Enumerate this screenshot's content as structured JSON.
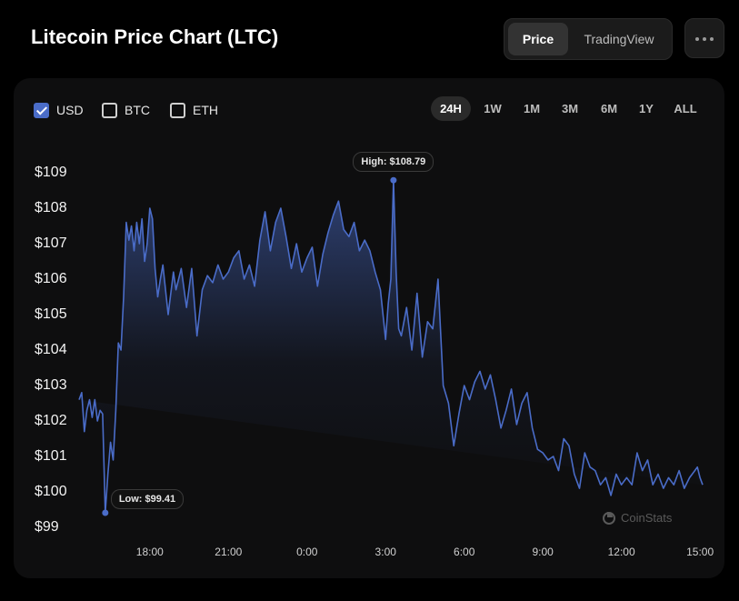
{
  "header": {
    "title": "Litecoin Price Chart (LTC)",
    "view_tabs": [
      "Price",
      "TradingView"
    ],
    "active_view": "Price",
    "more_icon": "more-horizontal-icon"
  },
  "currencies": [
    {
      "label": "USD",
      "checked": true
    },
    {
      "label": "BTC",
      "checked": false
    },
    {
      "label": "ETH",
      "checked": false
    }
  ],
  "ranges": [
    "24H",
    "1W",
    "1M",
    "3M",
    "6M",
    "1Y",
    "ALL"
  ],
  "active_range": "24H",
  "watermark": "CoinStats",
  "colors": {
    "line": "#4a6cc8",
    "accent_check": "#4a6cc8",
    "background": "#000000",
    "card": "#0e0e0f"
  },
  "chart_data": {
    "type": "area",
    "title": "",
    "xlabel": "",
    "ylabel": "",
    "y_tick_labels": [
      "$109",
      "$108",
      "$107",
      "$106",
      "$105",
      "$104",
      "$103",
      "$102",
      "$101",
      "$100",
      "$99"
    ],
    "y_ticks": [
      109,
      108,
      107,
      106,
      105,
      104,
      103,
      102,
      101,
      100,
      99
    ],
    "x_tick_labels": [
      "18:00",
      "21:00",
      "0:00",
      "3:00",
      "6:00",
      "9:00",
      "12:00",
      "15:00"
    ],
    "x_ticks": [
      18,
      21,
      24,
      27,
      30,
      33,
      36,
      39
    ],
    "xlim": [
      15.3,
      39.1
    ],
    "ylim": [
      99,
      109
    ],
    "grid": false,
    "annotations": [
      {
        "label": "High: $108.79",
        "x": 27.3,
        "y": 108.79
      },
      {
        "label": "Low: $99.41",
        "x": 16.3,
        "y": 99.41
      }
    ],
    "series": [
      {
        "x": [
          15.3,
          15.4,
          15.5,
          15.6,
          15.7,
          15.8,
          15.9,
          16.0,
          16.1,
          16.2,
          16.3,
          16.4,
          16.5,
          16.6,
          16.7,
          16.8,
          16.9,
          17.0,
          17.1,
          17.2,
          17.3,
          17.4,
          17.5,
          17.6,
          17.7,
          17.8,
          17.9,
          18.0,
          18.1,
          18.2,
          18.3,
          18.4,
          18.5,
          18.7,
          18.9,
          19.0,
          19.2,
          19.4,
          19.6,
          19.8,
          20.0,
          20.2,
          20.4,
          20.6,
          20.8,
          21.0,
          21.2,
          21.4,
          21.6,
          21.8,
          22.0,
          22.2,
          22.4,
          22.6,
          22.8,
          23.0,
          23.2,
          23.4,
          23.6,
          23.8,
          24.0,
          24.2,
          24.4,
          24.6,
          24.8,
          25.0,
          25.2,
          25.4,
          25.6,
          25.8,
          26.0,
          26.2,
          26.4,
          26.6,
          26.8,
          27.0,
          27.1,
          27.2,
          27.3,
          27.4,
          27.5,
          27.6,
          27.8,
          28.0,
          28.2,
          28.4,
          28.6,
          28.8,
          29.0,
          29.2,
          29.4,
          29.6,
          29.8,
          30.0,
          30.2,
          30.4,
          30.6,
          30.8,
          31.0,
          31.2,
          31.4,
          31.6,
          31.8,
          32.0,
          32.2,
          32.4,
          32.6,
          32.8,
          33.0,
          33.2,
          33.4,
          33.6,
          33.8,
          34.0,
          34.2,
          34.4,
          34.6,
          34.8,
          35.0,
          35.2,
          35.4,
          35.6,
          35.8,
          36.0,
          36.2,
          36.4,
          36.6,
          36.8,
          37.0,
          37.2,
          37.4,
          37.6,
          37.8,
          38.0,
          38.2,
          38.4,
          38.6,
          38.8,
          38.9,
          39.0,
          39.1
        ],
        "y": [
          102.6,
          102.8,
          101.7,
          102.3,
          102.6,
          102.1,
          102.6,
          102.0,
          102.3,
          102.2,
          99.41,
          100.5,
          101.4,
          100.9,
          102.3,
          104.2,
          104.0,
          105.5,
          107.6,
          107.1,
          107.5,
          106.8,
          107.6,
          107.0,
          107.7,
          106.5,
          107.0,
          108.0,
          107.7,
          106.3,
          105.5,
          106.0,
          106.4,
          105.0,
          106.2,
          105.7,
          106.3,
          105.2,
          106.3,
          104.4,
          105.7,
          106.1,
          105.9,
          106.4,
          106.0,
          106.2,
          106.6,
          106.8,
          106.0,
          106.4,
          105.8,
          107.1,
          107.9,
          106.8,
          107.6,
          108.0,
          107.2,
          106.3,
          107.0,
          106.2,
          106.6,
          106.9,
          105.8,
          106.7,
          107.3,
          107.8,
          108.2,
          107.4,
          107.2,
          107.6,
          106.8,
          107.1,
          106.8,
          106.2,
          105.7,
          104.3,
          105.3,
          106.0,
          108.79,
          106.2,
          104.6,
          104.4,
          105.2,
          104.0,
          105.6,
          103.8,
          104.8,
          104.6,
          106.0,
          103.0,
          102.5,
          101.3,
          102.2,
          103.0,
          102.6,
          103.1,
          103.4,
          102.9,
          103.3,
          102.6,
          101.8,
          102.3,
          102.9,
          101.9,
          102.5,
          102.8,
          101.8,
          101.2,
          101.1,
          100.9,
          101.0,
          100.6,
          101.5,
          101.3,
          100.5,
          100.1,
          101.1,
          100.7,
          100.6,
          100.2,
          100.4,
          99.9,
          100.5,
          100.2,
          100.4,
          100.2,
          101.1,
          100.6,
          100.9,
          100.2,
          100.5,
          100.1,
          100.4,
          100.2,
          100.6,
          100.1,
          100.4,
          100.6,
          100.7,
          100.4,
          100.2
        ],
        "values_approximate": true
      }
    ]
  }
}
